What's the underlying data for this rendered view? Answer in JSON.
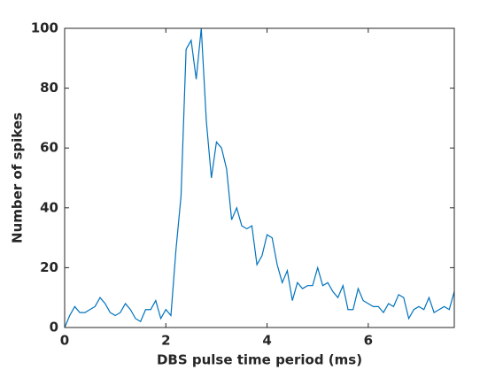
{
  "chart_data": {
    "type": "line",
    "xlabel": "DBS pulse time period (ms)",
    "ylabel": "Number of spikes",
    "x": [
      0,
      0.1,
      0.2,
      0.3,
      0.4,
      0.5,
      0.6,
      0.7,
      0.8,
      0.9,
      1.0,
      1.1,
      1.2,
      1.3,
      1.4,
      1.5,
      1.6,
      1.7,
      1.8,
      1.9,
      2.0,
      2.1,
      2.2,
      2.3,
      2.4,
      2.5,
      2.6,
      2.7,
      2.8,
      2.9,
      3.0,
      3.1,
      3.2,
      3.3,
      3.4,
      3.5,
      3.6,
      3.7,
      3.8,
      3.9,
      4.0,
      4.1,
      4.2,
      4.3,
      4.4,
      4.5,
      4.6,
      4.7,
      4.8,
      4.9,
      5.0,
      5.1,
      5.2,
      5.3,
      5.4,
      5.5,
      5.6,
      5.7,
      5.8,
      5.9,
      6.0,
      6.1,
      6.2,
      6.3,
      6.4,
      6.5,
      6.6,
      6.7,
      6.8,
      6.9,
      7.0,
      7.1,
      7.2,
      7.3,
      7.4,
      7.5,
      7.6,
      7.7
    ],
    "series": [
      {
        "color": "#0072bd",
        "values": [
          0,
          4,
          7,
          5,
          5,
          6,
          7,
          10,
          8,
          5,
          4,
          5,
          8,
          6,
          3,
          2,
          6,
          6,
          9,
          3,
          6,
          4,
          26,
          44,
          93,
          96,
          83,
          100,
          69,
          50,
          62,
          60,
          53,
          36,
          40,
          34,
          33,
          34,
          21,
          24,
          31,
          30,
          21,
          15,
          19,
          9,
          15,
          13,
          14,
          14,
          20,
          14,
          15,
          12,
          10,
          14,
          6,
          6,
          13,
          9,
          8,
          7,
          7,
          5,
          8,
          7,
          11,
          10,
          3,
          6,
          7,
          6,
          10,
          5,
          6,
          7,
          6,
          12
        ]
      }
    ],
    "xlim": [
      0,
      7.7
    ],
    "xticks": [
      0,
      2,
      4,
      6
    ],
    "ylim": [
      0,
      100
    ],
    "yticks": [
      0,
      20,
      40,
      60,
      80,
      100
    ]
  }
}
